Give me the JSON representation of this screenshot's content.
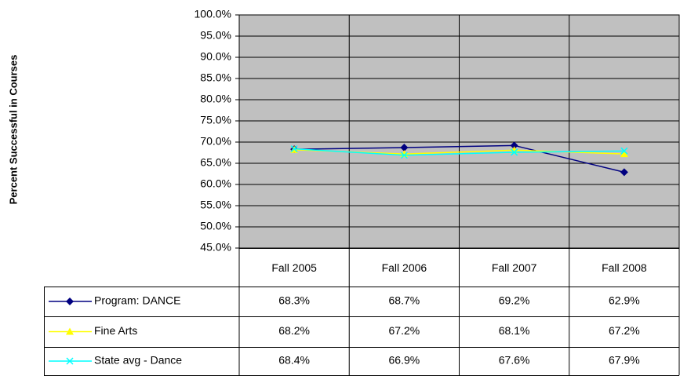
{
  "chart_data": {
    "type": "line",
    "y_label": "Percent Successful in Courses",
    "categories": [
      "Fall 2005",
      "Fall 2006",
      "Fall 2007",
      "Fall 2008"
    ],
    "series": [
      {
        "name": "Program: DANCE",
        "color": "#000080",
        "marker": "diamond",
        "values": [
          68.3,
          68.7,
          69.2,
          62.9
        ],
        "value_labels": [
          "68.3%",
          "68.7%",
          "69.2%",
          "62.9%"
        ]
      },
      {
        "name": "Fine Arts",
        "color": "#ffff00",
        "marker": "triangle",
        "values": [
          68.2,
          67.2,
          68.1,
          67.2
        ],
        "value_labels": [
          "68.2%",
          "67.2%",
          "68.1%",
          "67.2%"
        ]
      },
      {
        "name": "State avg - Dance",
        "color": "#00ffff",
        "marker": "x",
        "values": [
          68.4,
          66.9,
          67.6,
          67.9
        ],
        "value_labels": [
          "68.4%",
          "66.9%",
          "67.6%",
          "67.9%"
        ]
      }
    ],
    "ylim": [
      45,
      100
    ],
    "yticks": [
      {
        "value": 45,
        "label": "45.0%"
      },
      {
        "value": 50,
        "label": "50.0%"
      },
      {
        "value": 55,
        "label": "55.0%"
      },
      {
        "value": 60,
        "label": "60.0%"
      },
      {
        "value": 65,
        "label": "65.0%"
      },
      {
        "value": 70,
        "label": "70.0%"
      },
      {
        "value": 75,
        "label": "75.0%"
      },
      {
        "value": 80,
        "label": "80.0%"
      },
      {
        "value": 85,
        "label": "85.0%"
      },
      {
        "value": 90,
        "label": "90.0%"
      },
      {
        "value": 95,
        "label": "95.0%"
      },
      {
        "value": 100,
        "label": "100.0%"
      }
    ],
    "grid": true,
    "plot_background": "#c0c0c0"
  }
}
